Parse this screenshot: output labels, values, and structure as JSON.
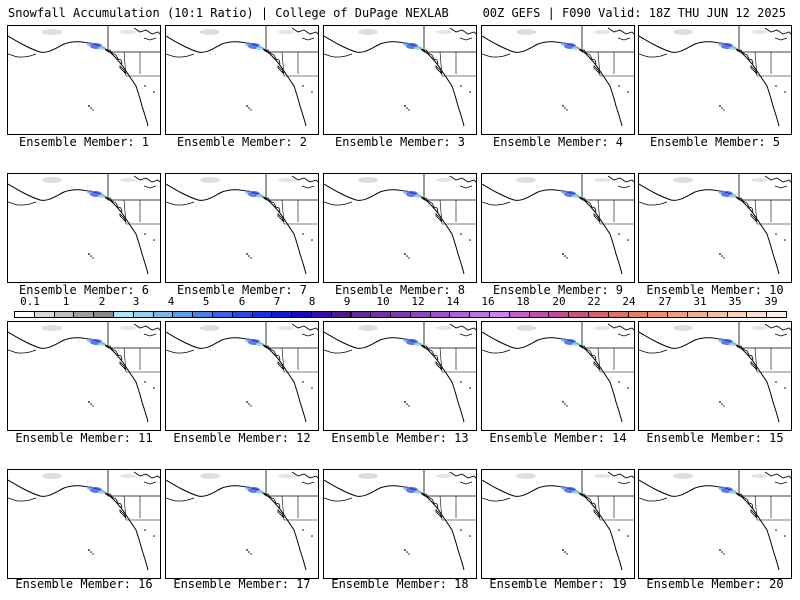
{
  "header": {
    "left": "Snowfall Accumulation (10:1 Ratio) | College of DuPage NEXLAB",
    "right": "00Z GEFS | F090 Valid: 18Z THU JUN 12 2025"
  },
  "panels": [
    {
      "label": "Ensemble Member: 1"
    },
    {
      "label": "Ensemble Member: 2"
    },
    {
      "label": "Ensemble Member: 3"
    },
    {
      "label": "Ensemble Member: 4"
    },
    {
      "label": "Ensemble Member: 5"
    },
    {
      "label": "Ensemble Member: 6"
    },
    {
      "label": "Ensemble Member: 7"
    },
    {
      "label": "Ensemble Member: 8"
    },
    {
      "label": "Ensemble Member: 9"
    },
    {
      "label": "Ensemble Member: 10"
    },
    {
      "label": "Ensemble Member: 11"
    },
    {
      "label": "Ensemble Member: 12"
    },
    {
      "label": "Ensemble Member: 13"
    },
    {
      "label": "Ensemble Member: 14"
    },
    {
      "label": "Ensemble Member: 15"
    },
    {
      "label": "Ensemble Member: 16"
    },
    {
      "label": "Ensemble Member: 17"
    },
    {
      "label": "Ensemble Member: 18"
    },
    {
      "label": "Ensemble Member: 19"
    },
    {
      "label": "Ensemble Member: 20"
    }
  ],
  "colorbar": {
    "labels": [
      "0.1",
      "1",
      "2",
      "3",
      "4",
      "5",
      "6",
      "7",
      "8",
      "9",
      "10",
      "12",
      "14",
      "16",
      "18",
      "20",
      "22",
      "24",
      "27",
      "31",
      "35",
      "39"
    ],
    "colors": [
      "#ffffff",
      "#d9d9d9",
      "#bdbdbd",
      "#a0a0a0",
      "#8a8a8a",
      "#a8e8f0",
      "#8fd3ee",
      "#78b8ee",
      "#5f9cee",
      "#4a80ec",
      "#3a64ea",
      "#2848e8",
      "#1830e0",
      "#0a1ed0",
      "#1a0ab8",
      "#3a0aa8",
      "#4a1a90",
      "#5e2a98",
      "#7030a8",
      "#8038b8",
      "#9045c5",
      "#a050d0",
      "#b060d8",
      "#c070e0",
      "#d080e8",
      "#c060c8",
      "#c050b0",
      "#c84898",
      "#d05080",
      "#d86070",
      "#e07060",
      "#e88060",
      "#f09068",
      "#f0a078",
      "#f0b090",
      "#f0c0a8",
      "#f5d0bc",
      "#fae0d0",
      "#fff0e4"
    ]
  }
}
